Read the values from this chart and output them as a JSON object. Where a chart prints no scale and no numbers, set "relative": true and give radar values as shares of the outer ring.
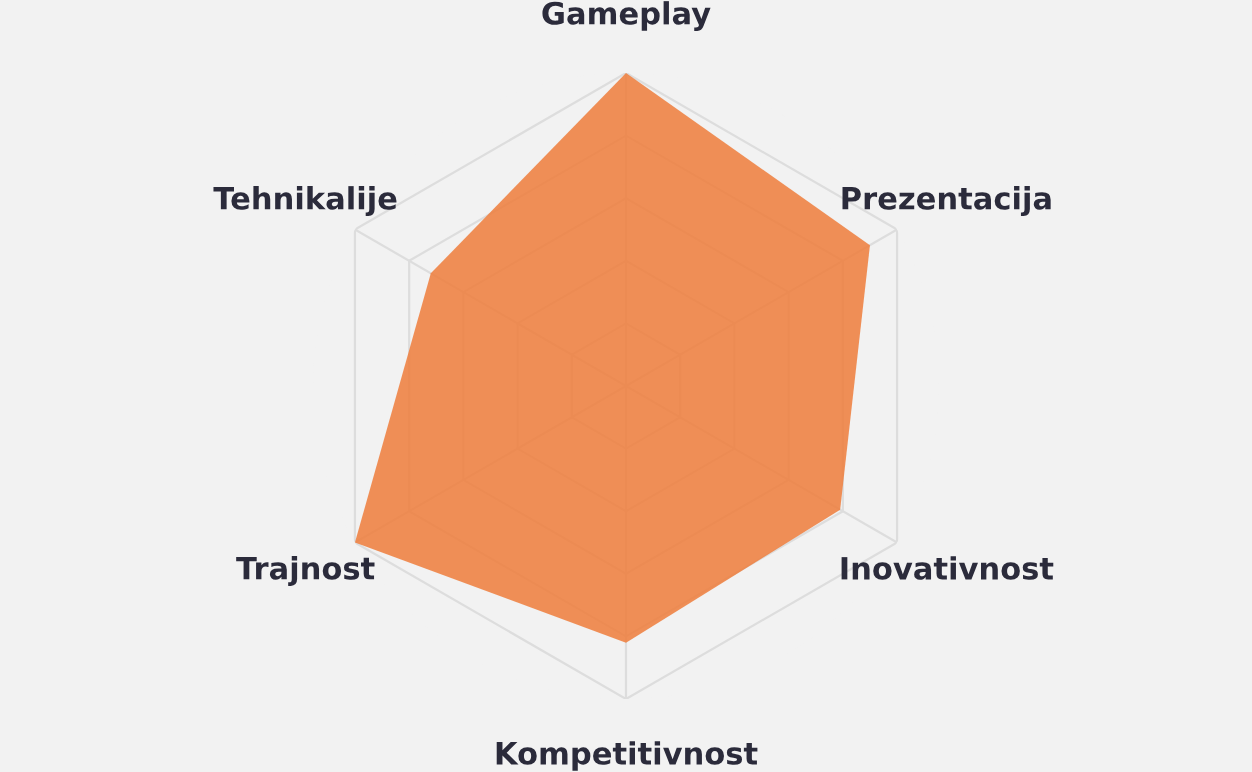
{
  "chart_data": {
    "type": "radar",
    "relative": true,
    "grid": true,
    "legend": false,
    "categories": [
      "Gameplay",
      "Prezentacija",
      "Inovativnost",
      "Kompetitivnost",
      "Trajnost",
      "Tehnikalije"
    ],
    "series": [
      {
        "color": "#ee7d3b",
        "values": [
          1,
          0.9,
          0.79,
          0.82,
          1,
          0.72
        ]
      }
    ]
  }
}
